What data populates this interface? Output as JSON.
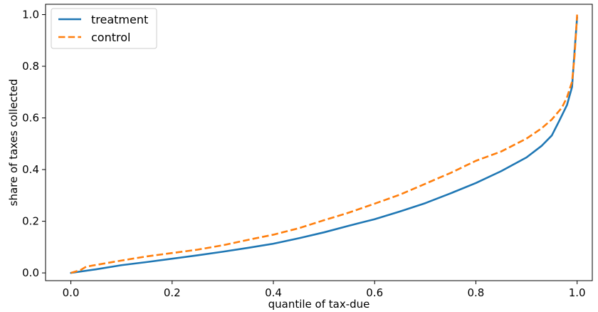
{
  "chart_data": {
    "type": "line",
    "title": "",
    "xlabel": "quantile of tax-due",
    "ylabel": "share of taxes collected",
    "xlim": [
      -0.05,
      1.03
    ],
    "ylim": [
      -0.03,
      1.04
    ],
    "xticks": [
      0.0,
      0.2,
      0.4,
      0.6,
      0.8,
      1.0
    ],
    "xtick_labels": [
      "0.0",
      "0.2",
      "0.4",
      "0.6",
      "0.8",
      "1.0"
    ],
    "yticks": [
      0.0,
      0.2,
      0.4,
      0.6,
      0.8,
      1.0
    ],
    "ytick_labels": [
      "0.0",
      "0.2",
      "0.4",
      "0.6",
      "0.8",
      "1.0"
    ],
    "grid": false,
    "legend_position": "top-left",
    "series": [
      {
        "name": "treatment",
        "color": "#1f77b4",
        "line_style": "solid",
        "x": [
          0.0,
          0.05,
          0.1,
          0.15,
          0.2,
          0.25,
          0.3,
          0.35,
          0.4,
          0.45,
          0.5,
          0.55,
          0.6,
          0.65,
          0.7,
          0.75,
          0.8,
          0.85,
          0.9,
          0.93,
          0.95,
          0.965,
          0.98,
          0.99,
          0.995,
          1.0
        ],
        "y": [
          0.0,
          0.014,
          0.03,
          0.042,
          0.055,
          0.068,
          0.082,
          0.097,
          0.113,
          0.134,
          0.157,
          0.183,
          0.208,
          0.238,
          0.27,
          0.308,
          0.348,
          0.394,
          0.447,
          0.492,
          0.532,
          0.59,
          0.65,
          0.72,
          0.86,
          0.99
        ]
      },
      {
        "name": "control",
        "color": "#ff7f0e",
        "line_style": "dashed",
        "x": [
          0.0,
          0.02,
          0.03,
          0.05,
          0.1,
          0.15,
          0.2,
          0.25,
          0.3,
          0.35,
          0.4,
          0.45,
          0.5,
          0.55,
          0.6,
          0.65,
          0.7,
          0.75,
          0.8,
          0.85,
          0.9,
          0.93,
          0.95,
          0.97,
          0.98,
          0.99,
          0.995,
          1.0
        ],
        "y": [
          0.0,
          0.012,
          0.024,
          0.031,
          0.048,
          0.064,
          0.077,
          0.09,
          0.107,
          0.128,
          0.148,
          0.173,
          0.204,
          0.234,
          0.268,
          0.303,
          0.345,
          0.387,
          0.434,
          0.47,
          0.52,
          0.56,
          0.594,
          0.64,
          0.68,
          0.74,
          0.84,
          1.0
        ]
      }
    ]
  }
}
